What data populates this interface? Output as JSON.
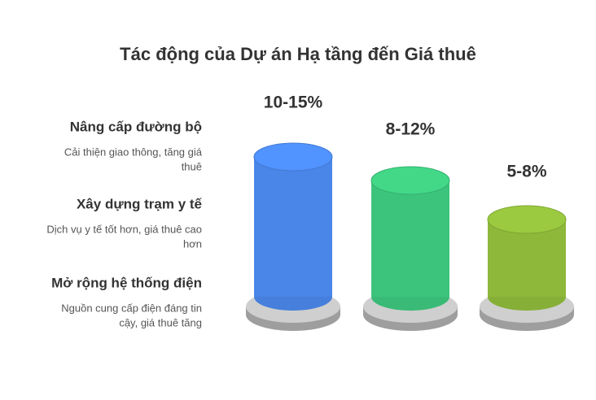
{
  "title": "Tác động của Dự án Hạ tầng đến Giá thuê",
  "items": [
    {
      "name": "Nâng cấp đường bộ",
      "description": [
        "Cải thiện giao thông, tăng giá",
        "thuê"
      ],
      "label": "10-15%",
      "color": "#4a86e8"
    },
    {
      "name": "Xây dựng trạm y tế",
      "description": [
        "Dịch vụ y tế tốt hơn, giá thuê cao",
        "hơn"
      ],
      "label": "8-12%",
      "color": "#3cc47c"
    },
    {
      "name": "Mở rộng hệ thống điện",
      "description": [
        "Nguồn cung cấp điện đáng tin",
        "cậy, giá thuê tăng"
      ],
      "label": "5-8%",
      "color": "#8db83a"
    }
  ]
}
